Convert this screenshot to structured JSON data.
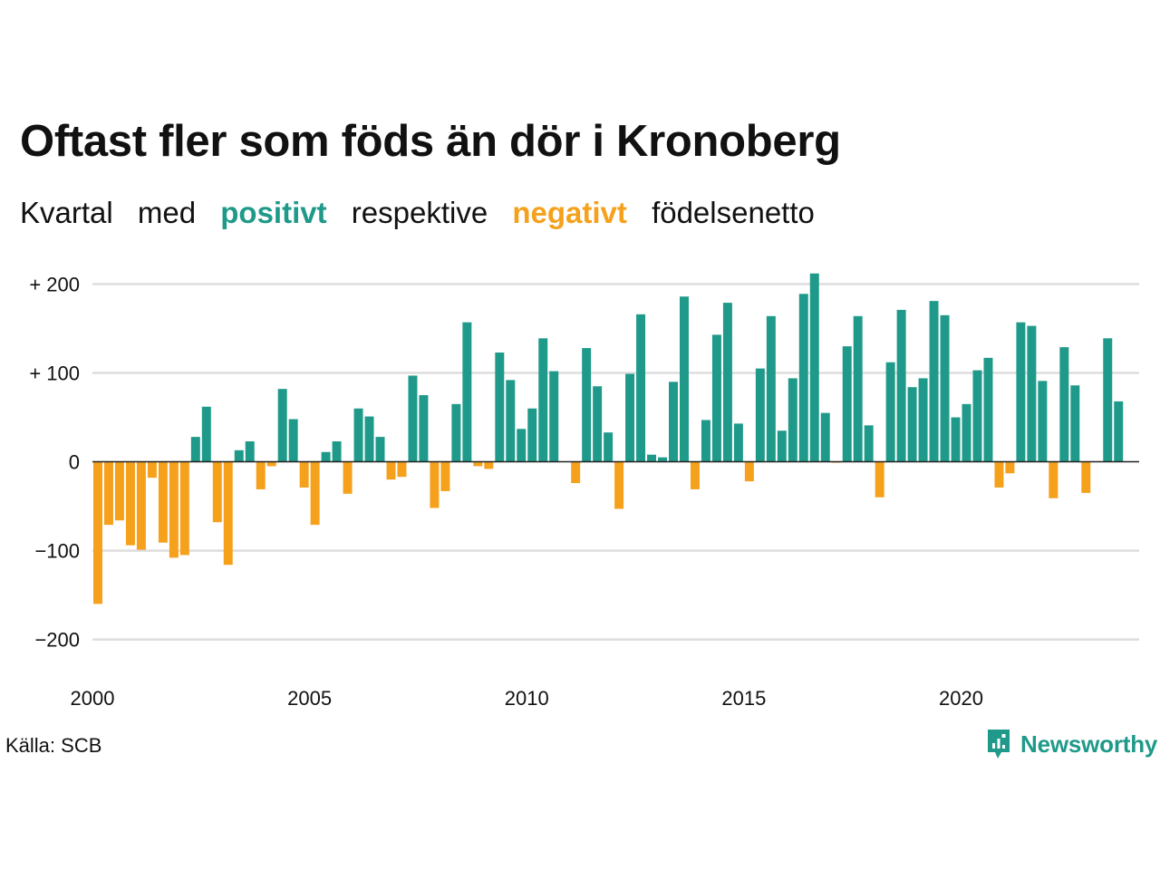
{
  "title": "Oftast fler som föds än dör i Kronoberg",
  "subtitle": {
    "w1": "Kvartal",
    "w2": "med",
    "positive": "positivt",
    "w3": "respektive",
    "negative": "negativt",
    "w4": "födelsenetto"
  },
  "source": "Källa: SCB",
  "brand": "Newsworthy",
  "colors": {
    "positive": "#1f9a8a",
    "negative": "#f5a11c",
    "grid": "#dddddd",
    "zero_line": "#222222"
  },
  "chart_data": {
    "type": "bar",
    "ylim": [
      -230,
      225
    ],
    "yticks": [
      200,
      100,
      0,
      -100,
      -200
    ],
    "ytick_labels": [
      "+ 200",
      "+ 100",
      "0",
      "−100",
      "−200"
    ],
    "xlim": [
      2000.0,
      2024.1
    ],
    "xticks": [
      2000,
      2005,
      2010,
      2015,
      2020
    ],
    "xtick_labels": [
      "2000",
      "2005",
      "2010",
      "2015",
      "2020"
    ],
    "grid": true,
    "x_start": "2000 Q1",
    "values": [
      -160,
      -71,
      -66,
      -94,
      -99,
      -18,
      -91,
      -108,
      -105,
      28,
      62,
      -68,
      -116,
      13,
      23,
      -31,
      -5,
      82,
      48,
      -29,
      -71,
      11,
      23,
      -36,
      60,
      51,
      28,
      -20,
      -17,
      97,
      75,
      -52,
      -33,
      65,
      157,
      -5,
      -8,
      123,
      92,
      37,
      60,
      139,
      102,
      0,
      -24,
      128,
      85,
      33,
      -53,
      99,
      166,
      8,
      5,
      90,
      186,
      -31,
      47,
      143,
      179,
      43,
      -22,
      105,
      164,
      35,
      94,
      189,
      212,
      55,
      -1,
      130,
      164,
      41,
      -40,
      112,
      171,
      84,
      94,
      181,
      165,
      50,
      65,
      103,
      117,
      -29,
      -13,
      157,
      153,
      91,
      -41,
      129,
      86,
      -35,
      0,
      139,
      68
    ]
  }
}
